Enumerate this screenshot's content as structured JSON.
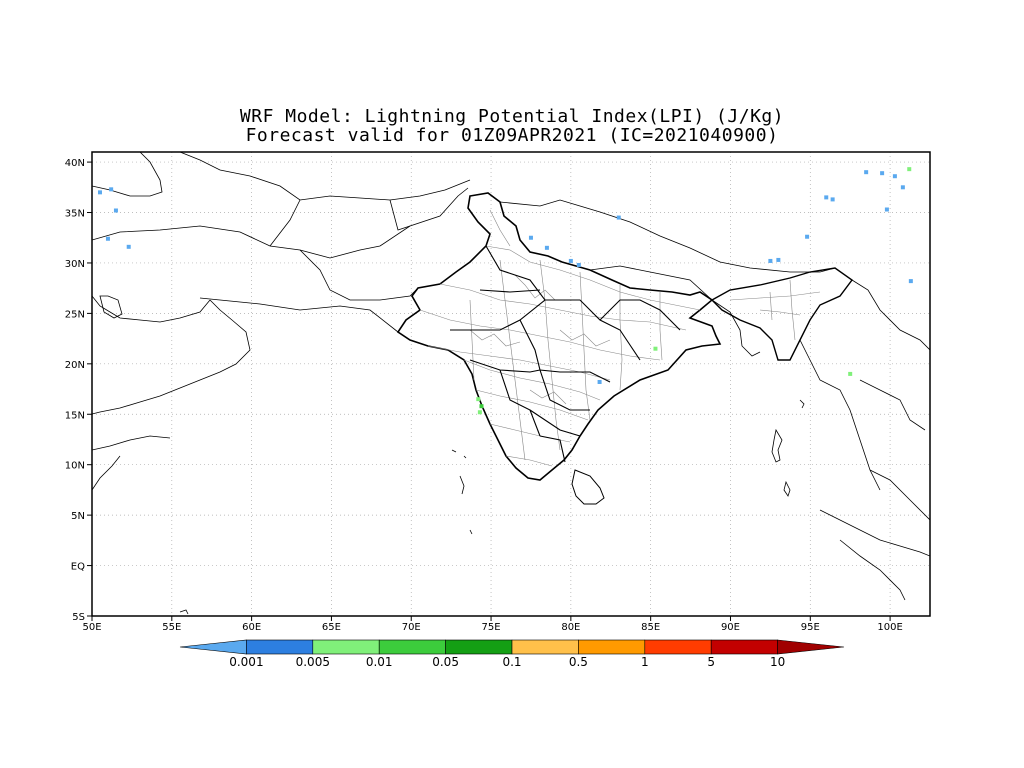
{
  "title_line1": "WRF Model: Lightning Potential Index(LPI) (J/Kg)",
  "title_line2": "Forecast valid for 01Z09APR2021 (IC=2021040900)",
  "map": {
    "lon_range": [
      50,
      102.5
    ],
    "lat_range": [
      -5,
      41
    ],
    "lon_ticks": [
      50,
      55,
      60,
      65,
      70,
      75,
      80,
      85,
      90,
      95,
      100
    ],
    "lon_labels": [
      "50E",
      "55E",
      "60E",
      "65E",
      "70E",
      "75E",
      "80E",
      "85E",
      "90E",
      "95E",
      "100E"
    ],
    "lat_ticks": [
      40,
      35,
      30,
      25,
      20,
      15,
      10,
      5,
      0,
      -5
    ],
    "lat_labels": [
      "40N",
      "35N",
      "30N",
      "25N",
      "20N",
      "15N",
      "10N",
      "5N",
      "EQ",
      "5S"
    ],
    "grid": "dotted",
    "coastline_color": "#000000"
  },
  "colorbar": {
    "colors": [
      "#5aa9ef",
      "#2d7fe0",
      "#80f07a",
      "#3ccc3c",
      "#149f14",
      "#ffc04a",
      "#ff9a00",
      "#ff3c00",
      "#c30000",
      "#a00000"
    ],
    "labels": [
      "0.001",
      "0.005",
      "0.01",
      "0.05",
      "0.1",
      "0.5",
      "1",
      "5",
      "10"
    ]
  },
  "lpi_patches": [
    {
      "lon": 74.2,
      "lat": 16.5,
      "color": "#80f07a"
    },
    {
      "lon": 74.4,
      "lat": 15.8,
      "color": "#3ccc3c"
    },
    {
      "lon": 74.3,
      "lat": 15.2,
      "color": "#80f07a"
    },
    {
      "lon": 85.3,
      "lat": 21.5,
      "color": "#80f07a"
    },
    {
      "lon": 81.8,
      "lat": 18.2,
      "color": "#5aa9ef"
    },
    {
      "lon": 50.5,
      "lat": 37.0,
      "color": "#5aa9ef"
    },
    {
      "lon": 51.2,
      "lat": 37.3,
      "color": "#5aa9ef"
    },
    {
      "lon": 51.5,
      "lat": 35.2,
      "color": "#5aa9ef"
    },
    {
      "lon": 51.0,
      "lat": 32.4,
      "color": "#5aa9ef"
    },
    {
      "lon": 52.3,
      "lat": 31.6,
      "color": "#5aa9ef"
    },
    {
      "lon": 83.0,
      "lat": 34.5,
      "color": "#5aa9ef"
    },
    {
      "lon": 77.5,
      "lat": 32.5,
      "color": "#5aa9ef"
    },
    {
      "lon": 78.5,
      "lat": 31.5,
      "color": "#5aa9ef"
    },
    {
      "lon": 80.0,
      "lat": 30.2,
      "color": "#5aa9ef"
    },
    {
      "lon": 80.5,
      "lat": 29.8,
      "color": "#5aa9ef"
    },
    {
      "lon": 92.5,
      "lat": 30.2,
      "color": "#5aa9ef"
    },
    {
      "lon": 93.0,
      "lat": 30.3,
      "color": "#5aa9ef"
    },
    {
      "lon": 94.8,
      "lat": 32.6,
      "color": "#5aa9ef"
    },
    {
      "lon": 96.0,
      "lat": 36.5,
      "color": "#5aa9ef"
    },
    {
      "lon": 96.4,
      "lat": 36.3,
      "color": "#5aa9ef"
    },
    {
      "lon": 98.5,
      "lat": 39.0,
      "color": "#5aa9ef"
    },
    {
      "lon": 99.5,
      "lat": 38.9,
      "color": "#5aa9ef"
    },
    {
      "lon": 100.3,
      "lat": 38.6,
      "color": "#5aa9ef"
    },
    {
      "lon": 100.8,
      "lat": 37.5,
      "color": "#5aa9ef"
    },
    {
      "lon": 101.2,
      "lat": 39.3,
      "color": "#80f07a"
    },
    {
      "lon": 99.8,
      "lat": 35.3,
      "color": "#5aa9ef"
    },
    {
      "lon": 101.3,
      "lat": 28.2,
      "color": "#5aa9ef"
    },
    {
      "lon": 97.5,
      "lat": 19.0,
      "color": "#80f07a"
    }
  ]
}
